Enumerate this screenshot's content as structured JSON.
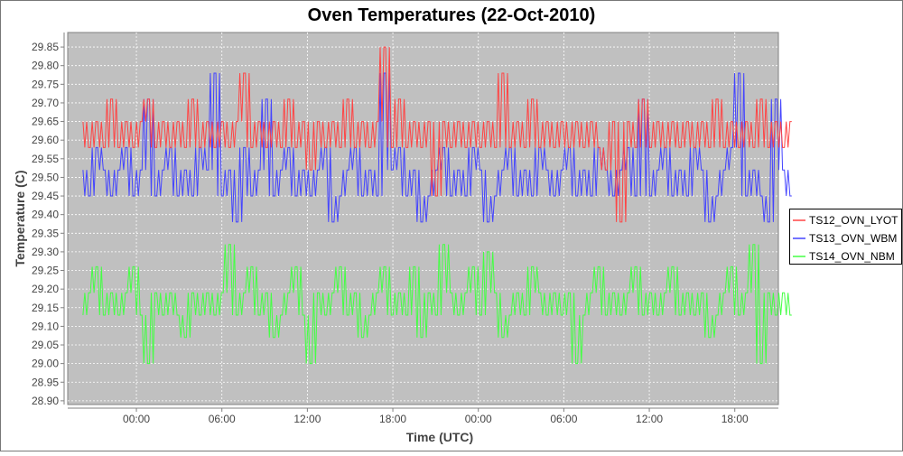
{
  "chart_data": {
    "type": "line",
    "title": "Oven Temperatures (22-Oct-2010)",
    "xlabel": "Time (UTC)",
    "ylabel": "Temperature (C)",
    "x_unit": "hours relative to 00:00 22-Oct-2010",
    "xlim": [
      -4.82,
      45.06
    ],
    "ylim": [
      28.89,
      29.889
    ],
    "x_ticks": [
      {
        "value": 0,
        "label": "00:00"
      },
      {
        "value": 6,
        "label": "06:00"
      },
      {
        "value": 12,
        "label": "12:00"
      },
      {
        "value": 18,
        "label": "18:00"
      },
      {
        "value": 24,
        "label": "00:00"
      },
      {
        "value": 30,
        "label": "06:00"
      },
      {
        "value": 36,
        "label": "12:00"
      },
      {
        "value": 42,
        "label": "18:00"
      }
    ],
    "y_ticks": [
      "28.90",
      "28.95",
      "29.00",
      "29.05",
      "29.10",
      "29.15",
      "29.20",
      "29.25",
      "29.30",
      "29.35",
      "29.40",
      "29.45",
      "29.50",
      "29.55",
      "29.60",
      "29.65",
      "29.70",
      "29.75",
      "29.80",
      "29.85"
    ],
    "grid": true,
    "legend": "right",
    "x_start": -3.75,
    "x_step": 0.5,
    "series": [
      {
        "name": "TS12_OVN_LYOT",
        "color": "#ff4444",
        "values": [
          29.65,
          29.58,
          29.65,
          29.58,
          29.71,
          29.58,
          29.65,
          29.58,
          29.65,
          29.71,
          29.58,
          29.65,
          29.58,
          29.65,
          29.58,
          29.71,
          29.58,
          29.65,
          29.58,
          29.65,
          29.58,
          29.65,
          29.78,
          29.58,
          29.65,
          29.58,
          29.65,
          29.58,
          29.71,
          29.58,
          29.65,
          29.52,
          29.65,
          29.58,
          29.65,
          29.58,
          29.71,
          29.58,
          29.65,
          29.58,
          29.65,
          29.85,
          29.58,
          29.71,
          29.58,
          29.65,
          29.58,
          29.65,
          29.45,
          29.65,
          29.58,
          29.65,
          29.58,
          29.65,
          29.58,
          29.65,
          29.58,
          29.78,
          29.58,
          29.65,
          29.58,
          29.71,
          29.58,
          29.65,
          29.58,
          29.65,
          29.58,
          29.65,
          29.58,
          29.65,
          29.58,
          29.52,
          29.65,
          29.38,
          29.65,
          29.58,
          29.71,
          29.58,
          29.65,
          29.58,
          29.65,
          29.58,
          29.65,
          29.58,
          29.65,
          29.58,
          29.71,
          29.58,
          29.65,
          29.58,
          29.65,
          29.58,
          29.71,
          29.58,
          29.65,
          29.58,
          29.65
        ]
      },
      {
        "name": "TS13_OVN_WBM",
        "color": "#4444ff",
        "values": [
          29.52,
          29.45,
          29.58,
          29.52,
          29.45,
          29.52,
          29.58,
          29.45,
          29.52,
          29.71,
          29.45,
          29.52,
          29.58,
          29.45,
          29.52,
          29.45,
          29.58,
          29.52,
          29.78,
          29.45,
          29.52,
          29.38,
          29.58,
          29.45,
          29.52,
          29.71,
          29.45,
          29.52,
          29.58,
          29.45,
          29.52,
          29.45,
          29.52,
          29.58,
          29.38,
          29.45,
          29.52,
          29.58,
          29.45,
          29.52,
          29.45,
          29.78,
          29.52,
          29.58,
          29.45,
          29.52,
          29.38,
          29.45,
          29.52,
          29.58,
          29.45,
          29.52,
          29.45,
          29.58,
          29.52,
          29.38,
          29.45,
          29.52,
          29.58,
          29.45,
          29.52,
          29.45,
          29.58,
          29.52,
          29.45,
          29.52,
          29.58,
          29.45,
          29.52,
          29.45,
          29.58,
          29.52,
          29.45,
          29.52,
          29.58,
          29.45,
          29.71,
          29.45,
          29.52,
          29.58,
          29.45,
          29.52,
          29.45,
          29.58,
          29.52,
          29.38,
          29.45,
          29.52,
          29.58,
          29.78,
          29.45,
          29.52,
          29.45,
          29.38,
          29.71,
          29.52,
          29.45
        ]
      },
      {
        "name": "TS14_OVN_NBM",
        "color": "#44ff44",
        "values": [
          29.13,
          29.19,
          29.26,
          29.13,
          29.19,
          29.13,
          29.19,
          29.26,
          29.13,
          29.0,
          29.19,
          29.13,
          29.19,
          29.13,
          29.07,
          29.19,
          29.13,
          29.19,
          29.13,
          29.19,
          29.32,
          29.13,
          29.19,
          29.26,
          29.13,
          29.19,
          29.07,
          29.13,
          29.19,
          29.26,
          29.13,
          29.0,
          29.19,
          29.13,
          29.19,
          29.26,
          29.13,
          29.19,
          29.07,
          29.13,
          29.19,
          29.26,
          29.13,
          29.19,
          29.13,
          29.26,
          29.07,
          29.19,
          29.13,
          29.32,
          29.19,
          29.13,
          29.19,
          29.26,
          29.13,
          29.3,
          29.19,
          29.07,
          29.13,
          29.19,
          29.13,
          29.26,
          29.19,
          29.13,
          29.19,
          29.13,
          29.19,
          29.0,
          29.13,
          29.19,
          29.26,
          29.13,
          29.19,
          29.13,
          29.19,
          29.26,
          29.13,
          29.19,
          29.13,
          29.19,
          29.26,
          29.13,
          29.19,
          29.13,
          29.19,
          29.07,
          29.13,
          29.19,
          29.26,
          29.13,
          29.19,
          29.32,
          29.0,
          29.19,
          29.13,
          29.19,
          29.13
        ]
      }
    ]
  }
}
